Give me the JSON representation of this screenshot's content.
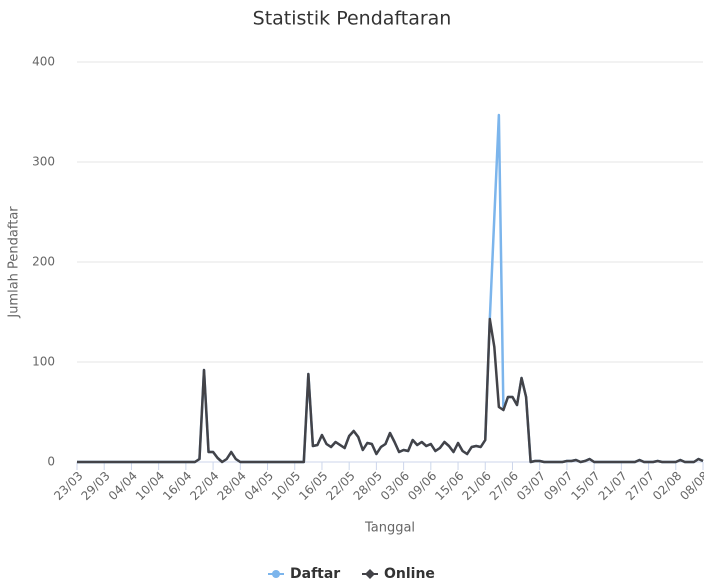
{
  "chart_data": {
    "type": "line",
    "title": "Statistik Pendaftaran",
    "xlabel": "Tanggal",
    "ylabel": "Jumlah Pendaftar",
    "categories": [
      "23/03",
      null,
      null,
      null,
      null,
      null,
      "29/03",
      null,
      null,
      null,
      null,
      null,
      "04/04",
      null,
      null,
      null,
      null,
      null,
      "10/04",
      null,
      null,
      null,
      null,
      null,
      "16/04",
      null,
      null,
      null,
      null,
      null,
      "22/04",
      null,
      null,
      null,
      null,
      null,
      "28/04",
      null,
      null,
      null,
      null,
      null,
      "04/05",
      null,
      null,
      null,
      null,
      null,
      "10/05",
      null,
      null,
      null,
      null,
      null,
      "16/05",
      null,
      null,
      null,
      null,
      null,
      "22/05",
      null,
      null,
      null,
      null,
      null,
      "28/05",
      null,
      null,
      null,
      null,
      null,
      "03/06",
      null,
      null,
      null,
      null,
      null,
      "09/06",
      null,
      null,
      null,
      null,
      null,
      "15/06",
      null,
      null,
      null,
      null,
      null,
      "21/06",
      null,
      null,
      null,
      null,
      null,
      "27/06",
      null,
      null,
      null,
      null,
      null,
      "03/07",
      null,
      null,
      null,
      null,
      null,
      "09/07",
      null,
      null,
      null,
      null,
      null,
      "15/07",
      null,
      null,
      null,
      null,
      null,
      "21/07",
      null,
      null,
      null,
      null,
      null,
      "27/07",
      null,
      null,
      null,
      null,
      null,
      "02/08",
      null,
      null,
      null,
      null,
      null,
      "08/08"
    ],
    "series": [
      {
        "name": "Daftar",
        "color": "#7cb5ec",
        "values": [
          0,
          0,
          0,
          0,
          0,
          0,
          0,
          0,
          0,
          0,
          0,
          0,
          0,
          0,
          0,
          0,
          0,
          0,
          0,
          0,
          0,
          0,
          0,
          0,
          0,
          0,
          0,
          3,
          92,
          10,
          10,
          4,
          0,
          3,
          10,
          3,
          0,
          0,
          0,
          0,
          0,
          0,
          0,
          0,
          0,
          0,
          0,
          0,
          0,
          0,
          0,
          88,
          16,
          17,
          27,
          18,
          15,
          20,
          17,
          14,
          26,
          31,
          25,
          12,
          19,
          18,
          8,
          15,
          18,
          29,
          20,
          10,
          12,
          11,
          22,
          17,
          20,
          16,
          18,
          11,
          14,
          20,
          16,
          10,
          19,
          11,
          8,
          15,
          16,
          15,
          22,
          143,
          245,
          347,
          52,
          65,
          65,
          57,
          84,
          65,
          0,
          1,
          1,
          0,
          0,
          0,
          0,
          0,
          1,
          1,
          2,
          0,
          1,
          3,
          0,
          0,
          0,
          0,
          0,
          0,
          0,
          0,
          0,
          0,
          2,
          0,
          0,
          0,
          1,
          0,
          0,
          0,
          0,
          2,
          0,
          0,
          0,
          3,
          1
        ]
      },
      {
        "name": "Online",
        "color": "#434348",
        "values": [
          0,
          0,
          0,
          0,
          0,
          0,
          0,
          0,
          0,
          0,
          0,
          0,
          0,
          0,
          0,
          0,
          0,
          0,
          0,
          0,
          0,
          0,
          0,
          0,
          0,
          0,
          0,
          3,
          92,
          10,
          10,
          4,
          0,
          3,
          10,
          3,
          0,
          0,
          0,
          0,
          0,
          0,
          0,
          0,
          0,
          0,
          0,
          0,
          0,
          0,
          0,
          88,
          16,
          17,
          27,
          18,
          15,
          20,
          17,
          14,
          26,
          31,
          25,
          12,
          19,
          18,
          8,
          15,
          18,
          29,
          20,
          10,
          12,
          11,
          22,
          17,
          20,
          16,
          18,
          11,
          14,
          20,
          16,
          10,
          19,
          11,
          8,
          15,
          16,
          15,
          22,
          143,
          115,
          55,
          52,
          65,
          65,
          57,
          84,
          65,
          0,
          1,
          1,
          0,
          0,
          0,
          0,
          0,
          1,
          1,
          2,
          0,
          1,
          3,
          0,
          0,
          0,
          0,
          0,
          0,
          0,
          0,
          0,
          0,
          2,
          0,
          0,
          0,
          1,
          0,
          0,
          0,
          0,
          2,
          0,
          0,
          0,
          3,
          1
        ]
      }
    ],
    "ylim": [
      0,
      400
    ],
    "yticks": [
      0,
      100,
      200,
      300,
      400
    ],
    "grid": true,
    "legend": "bottom"
  }
}
